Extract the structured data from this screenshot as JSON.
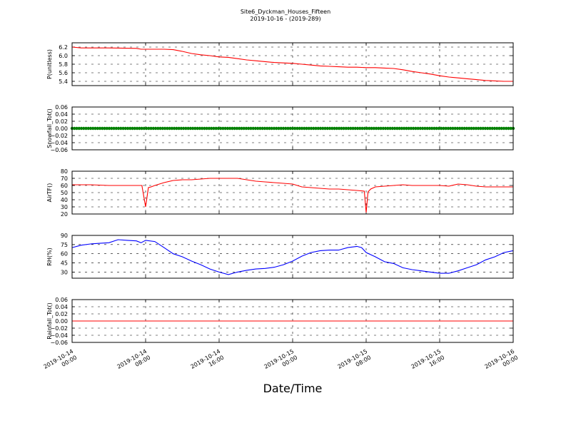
{
  "chart_data": {
    "type": "line",
    "title": "Site6_Dyckman_Houses_Fifteen",
    "subtitle": "2019-10-16 - (2019-289)",
    "xlabel": "Date/Time",
    "x_tick_labels": [
      [
        "2019-10-14",
        "00:00"
      ],
      [
        "2019-10-14",
        "08:00"
      ],
      [
        "2019-10-14",
        "16:00"
      ],
      [
        "2019-10-15",
        "00:00"
      ],
      [
        "2019-10-15",
        "08:00"
      ],
      [
        "2019-10-15",
        "16:00"
      ],
      [
        "2019-10-16",
        "00:00"
      ]
    ],
    "x_range_hours": [
      0,
      48
    ],
    "grid": true,
    "panels": [
      {
        "ylabel": "P(unitless)",
        "ylim": [
          5.3,
          6.3
        ],
        "yticks": [
          "6.2",
          "6.0",
          "5.8",
          "5.6",
          "5.4"
        ],
        "ytick_values": [
          6.2,
          6.0,
          5.8,
          5.6,
          5.4
        ],
        "series": [
          {
            "color": "#ff0000",
            "style": "line",
            "x": [
              0,
              1,
              4,
              7,
              7.5,
              10,
              11,
              12,
              13,
              14,
              15,
              16,
              17,
              18,
              19,
              20,
              21,
              22,
              23,
              24,
              25,
              26,
              27,
              28,
              29,
              30,
              31,
              32,
              33,
              34,
              35,
              36,
              37,
              38,
              39,
              40,
              41,
              42,
              43,
              44,
              45,
              46,
              47,
              48
            ],
            "y": [
              6.2,
              6.18,
              6.18,
              6.17,
              6.15,
              6.15,
              6.14,
              6.1,
              6.05,
              6.02,
              6.0,
              5.97,
              5.96,
              5.93,
              5.9,
              5.88,
              5.86,
              5.84,
              5.83,
              5.82,
              5.8,
              5.78,
              5.76,
              5.75,
              5.74,
              5.73,
              5.73,
              5.72,
              5.72,
              5.71,
              5.7,
              5.67,
              5.63,
              5.6,
              5.57,
              5.53,
              5.5,
              5.48,
              5.46,
              5.44,
              5.42,
              5.41,
              5.4,
              5.4
            ]
          }
        ]
      },
      {
        "ylabel": "Snowfall_Tot()",
        "ylim": [
          -0.06,
          0.06
        ],
        "yticks": [
          "0.06",
          "0.04",
          "0.02",
          "0.00",
          "−0.02",
          "−0.04",
          "−0.06"
        ],
        "ytick_values": [
          0.06,
          0.04,
          0.02,
          0.0,
          -0.02,
          -0.04,
          -0.06
        ],
        "series": [
          {
            "color": "#008000",
            "style": "markers",
            "x": [
              0,
              48
            ],
            "y": [
              0.0,
              0.0
            ]
          }
        ]
      },
      {
        "ylabel": "AirTF()",
        "ylim": [
          20,
          80
        ],
        "yticks": [
          "80",
          "70",
          "60",
          "50",
          "40",
          "30",
          "20"
        ],
        "ytick_values": [
          80,
          70,
          60,
          50,
          40,
          30,
          20
        ],
        "series": [
          {
            "color": "#ff0000",
            "style": "line",
            "x": [
              0,
              2,
              4,
              6,
              7.6,
              7.8,
              8.0,
              8.3,
              8.6,
              9,
              10,
              11,
              12,
              13,
              14,
              15,
              16,
              17,
              18,
              19,
              20,
              21,
              22,
              23,
              24,
              25,
              26,
              27,
              28,
              29,
              30,
              31,
              31.8,
              32.0,
              32.2,
              32.5,
              33,
              34,
              35,
              36,
              37,
              38,
              39,
              40,
              41,
              42,
              43,
              44,
              45,
              46,
              47,
              48
            ],
            "y": [
              61,
              61,
              60,
              60,
              60,
              45,
              30,
              57,
              58,
              60,
              64,
              67,
              68,
              68,
              69,
              70,
              70,
              70,
              70,
              68,
              66,
              65,
              64,
              63,
              62,
              58,
              57,
              56,
              55,
              55,
              54,
              53,
              52,
              22,
              51,
              55,
              58,
              59,
              60,
              61,
              60,
              60,
              60,
              60,
              59,
              62,
              61,
              59,
              58,
              58,
              58,
              58
            ]
          }
        ]
      },
      {
        "ylabel": "RH(%)",
        "ylim": [
          20,
          90
        ],
        "yticks": [
          "90",
          "75",
          "60",
          "45",
          "30"
        ],
        "ytick_values": [
          90,
          75,
          60,
          45,
          30
        ],
        "series": [
          {
            "color": "#0000ff",
            "style": "line",
            "x": [
              0,
              1,
              2,
              3,
              4,
              5,
              6,
              7,
              7.5,
              8,
              9,
              10,
              11,
              12,
              13,
              14,
              15,
              16,
              17,
              18,
              19,
              20,
              21,
              22,
              23,
              24,
              25,
              26,
              27,
              28,
              29,
              30,
              31,
              31.5,
              32,
              33,
              34,
              35,
              36,
              37,
              38,
              39,
              40,
              41,
              42,
              43,
              44,
              45,
              46,
              47,
              48
            ],
            "y": [
              70,
              74,
              76,
              77,
              78,
              83,
              82,
              81,
              78,
              82,
              80,
              70,
              60,
              55,
              48,
              42,
              35,
              30,
              26,
              30,
              33,
              35,
              36,
              38,
              42,
              48,
              56,
              62,
              65,
              66,
              66,
              70,
              72,
              70,
              62,
              55,
              47,
              44,
              37,
              34,
              32,
              30,
              28,
              28,
              32,
              37,
              42,
              50,
              55,
              62,
              65
            ]
          }
        ]
      },
      {
        "ylabel": "Rainfall_Tot()",
        "ylim": [
          -0.06,
          0.06
        ],
        "yticks": [
          "0.06",
          "0.04",
          "0.02",
          "0.00",
          "−0.02",
          "−0.04",
          "−0.06"
        ],
        "ytick_values": [
          0.06,
          0.04,
          0.02,
          0.0,
          -0.02,
          -0.04,
          -0.06
        ],
        "series": [
          {
            "color": "#ff0000",
            "style": "line",
            "x": [
              0,
              48
            ],
            "y": [
              0.0,
              0.0
            ]
          }
        ]
      }
    ]
  }
}
